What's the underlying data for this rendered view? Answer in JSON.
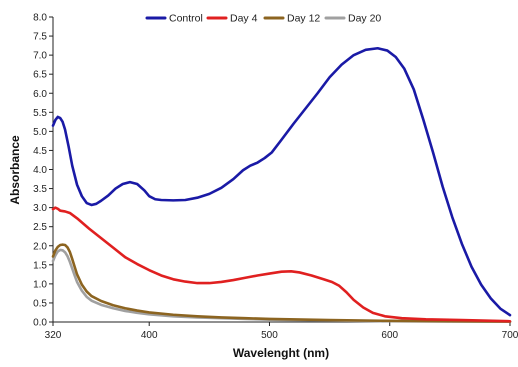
{
  "chart_data": {
    "type": "line",
    "title": "",
    "xlabel": "Wavelenght (nm)",
    "ylabel": "Absorbance",
    "xlim": [
      320,
      700
    ],
    "ylim": [
      0,
      8.0
    ],
    "x_ticks": [
      320,
      400,
      500,
      600,
      700
    ],
    "x_tick_labels": [
      "320",
      "400",
      "500",
      "600",
      "700"
    ],
    "y_ticks": [
      0,
      0.5,
      1.0,
      1.5,
      2.0,
      2.5,
      3.0,
      3.5,
      4.0,
      4.5,
      5.0,
      5.5,
      6.0,
      6.5,
      7.0,
      7.5,
      8.0
    ],
    "y_tick_labels": [
      "0.0",
      "0.5",
      "1.0",
      "1.5",
      "2.0",
      "2.5",
      "3.0",
      "3.5",
      "4.0",
      "4.5",
      "5.0",
      "5.5",
      "6.0",
      "6.5",
      "7.0",
      "7.5",
      "8.0"
    ],
    "grid": false,
    "legend_position": "top",
    "series": [
      {
        "name": "Control",
        "color": "#1a1aa6",
        "points": [
          [
            320,
            5.15
          ],
          [
            322,
            5.3
          ],
          [
            324,
            5.38
          ],
          [
            326,
            5.35
          ],
          [
            328,
            5.25
          ],
          [
            330,
            5.05
          ],
          [
            333,
            4.6
          ],
          [
            336,
            4.1
          ],
          [
            340,
            3.6
          ],
          [
            344,
            3.3
          ],
          [
            348,
            3.12
          ],
          [
            352,
            3.07
          ],
          [
            356,
            3.1
          ],
          [
            360,
            3.18
          ],
          [
            366,
            3.32
          ],
          [
            372,
            3.5
          ],
          [
            378,
            3.62
          ],
          [
            384,
            3.67
          ],
          [
            390,
            3.62
          ],
          [
            396,
            3.45
          ],
          [
            400,
            3.3
          ],
          [
            405,
            3.22
          ],
          [
            410,
            3.2
          ],
          [
            420,
            3.19
          ],
          [
            430,
            3.2
          ],
          [
            440,
            3.26
          ],
          [
            450,
            3.36
          ],
          [
            460,
            3.52
          ],
          [
            470,
            3.75
          ],
          [
            478,
            3.98
          ],
          [
            484,
            4.1
          ],
          [
            490,
            4.18
          ],
          [
            496,
            4.3
          ],
          [
            502,
            4.45
          ],
          [
            510,
            4.78
          ],
          [
            520,
            5.2
          ],
          [
            530,
            5.6
          ],
          [
            540,
            6.0
          ],
          [
            550,
            6.42
          ],
          [
            560,
            6.75
          ],
          [
            570,
            7.0
          ],
          [
            580,
            7.14
          ],
          [
            590,
            7.18
          ],
          [
            598,
            7.12
          ],
          [
            605,
            6.95
          ],
          [
            612,
            6.65
          ],
          [
            620,
            6.1
          ],
          [
            628,
            5.3
          ],
          [
            636,
            4.45
          ],
          [
            644,
            3.55
          ],
          [
            652,
            2.75
          ],
          [
            660,
            2.05
          ],
          [
            668,
            1.45
          ],
          [
            676,
            0.98
          ],
          [
            684,
            0.62
          ],
          [
            692,
            0.35
          ],
          [
            700,
            0.18
          ]
        ]
      },
      {
        "name": "Day 4",
        "color": "#e02020",
        "points": [
          [
            320,
            2.96
          ],
          [
            322,
            3.0
          ],
          [
            324,
            2.97
          ],
          [
            326,
            2.92
          ],
          [
            330,
            2.9
          ],
          [
            334,
            2.86
          ],
          [
            340,
            2.72
          ],
          [
            350,
            2.45
          ],
          [
            360,
            2.2
          ],
          [
            370,
            1.95
          ],
          [
            380,
            1.7
          ],
          [
            390,
            1.52
          ],
          [
            400,
            1.36
          ],
          [
            410,
            1.22
          ],
          [
            420,
            1.12
          ],
          [
            430,
            1.06
          ],
          [
            440,
            1.02
          ],
          [
            450,
            1.02
          ],
          [
            460,
            1.05
          ],
          [
            470,
            1.1
          ],
          [
            480,
            1.16
          ],
          [
            490,
            1.22
          ],
          [
            500,
            1.27
          ],
          [
            510,
            1.32
          ],
          [
            518,
            1.33
          ],
          [
            525,
            1.3
          ],
          [
            535,
            1.22
          ],
          [
            545,
            1.12
          ],
          [
            552,
            1.05
          ],
          [
            558,
            0.95
          ],
          [
            564,
            0.78
          ],
          [
            570,
            0.58
          ],
          [
            578,
            0.38
          ],
          [
            586,
            0.24
          ],
          [
            596,
            0.15
          ],
          [
            610,
            0.1
          ],
          [
            630,
            0.07
          ],
          [
            660,
            0.05
          ],
          [
            700,
            0.02
          ]
        ]
      },
      {
        "name": "Day 12",
        "color": "#8c6420",
        "points": [
          [
            320,
            1.72
          ],
          [
            322,
            1.88
          ],
          [
            324,
            1.97
          ],
          [
            326,
            2.02
          ],
          [
            328,
            2.03
          ],
          [
            330,
            2.02
          ],
          [
            332,
            1.96
          ],
          [
            334,
            1.84
          ],
          [
            336,
            1.65
          ],
          [
            338,
            1.45
          ],
          [
            340,
            1.25
          ],
          [
            344,
            0.98
          ],
          [
            348,
            0.8
          ],
          [
            352,
            0.68
          ],
          [
            360,
            0.55
          ],
          [
            370,
            0.44
          ],
          [
            380,
            0.36
          ],
          [
            390,
            0.3
          ],
          [
            400,
            0.25
          ],
          [
            420,
            0.19
          ],
          [
            440,
            0.15
          ],
          [
            460,
            0.12
          ],
          [
            480,
            0.1
          ],
          [
            500,
            0.08
          ],
          [
            550,
            0.05
          ],
          [
            600,
            0.03
          ],
          [
            650,
            0.02
          ],
          [
            700,
            0.01
          ]
        ]
      },
      {
        "name": "Day 20",
        "color": "#a0a0a0",
        "points": [
          [
            320,
            1.6
          ],
          [
            322,
            1.75
          ],
          [
            324,
            1.85
          ],
          [
            326,
            1.89
          ],
          [
            328,
            1.88
          ],
          [
            330,
            1.83
          ],
          [
            332,
            1.73
          ],
          [
            334,
            1.58
          ],
          [
            336,
            1.4
          ],
          [
            338,
            1.22
          ],
          [
            340,
            1.05
          ],
          [
            344,
            0.82
          ],
          [
            348,
            0.66
          ],
          [
            352,
            0.56
          ],
          [
            360,
            0.45
          ],
          [
            370,
            0.36
          ],
          [
            380,
            0.29
          ],
          [
            390,
            0.24
          ],
          [
            400,
            0.2
          ],
          [
            420,
            0.15
          ],
          [
            440,
            0.12
          ],
          [
            460,
            0.1
          ],
          [
            480,
            0.08
          ],
          [
            500,
            0.06
          ],
          [
            550,
            0.04
          ],
          [
            600,
            0.02
          ],
          [
            650,
            0.01
          ],
          [
            700,
            0.01
          ]
        ]
      }
    ]
  }
}
